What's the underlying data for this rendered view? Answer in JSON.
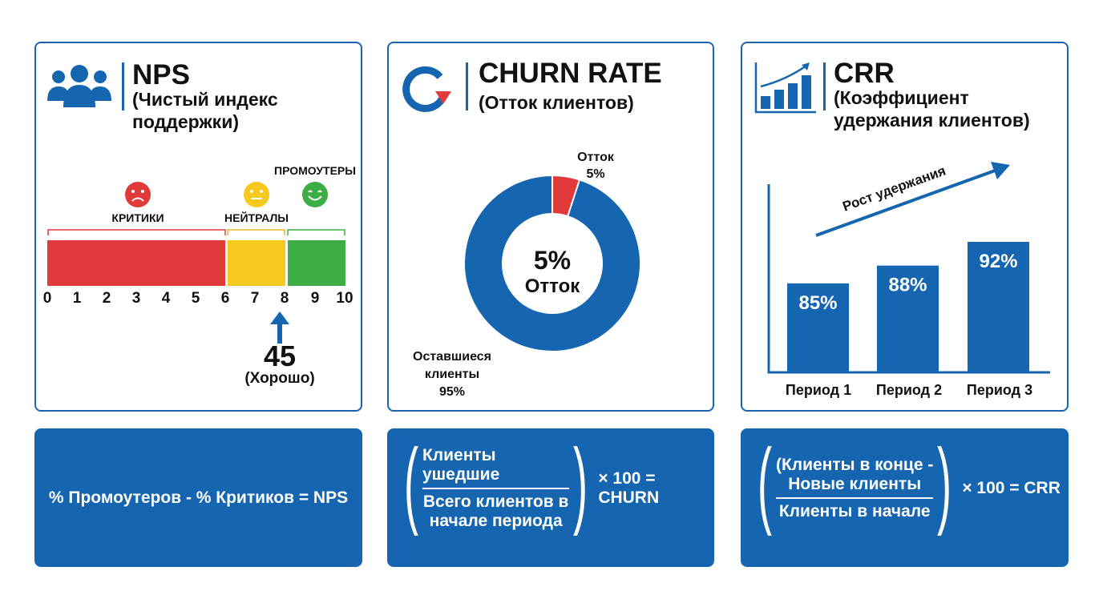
{
  "colors": {
    "blue": "#1565b0",
    "red": "#e03a3a",
    "yellow": "#f6c91f",
    "green": "#3cae45"
  },
  "nps": {
    "icon": "users-icon",
    "title": "NPS",
    "subtitle_line1": "(Чистый индекс",
    "subtitle_line2": "поддержки)",
    "segments": [
      {
        "label": "КРИТИКИ",
        "from": 0,
        "to": 6,
        "icon": "sad-face-icon"
      },
      {
        "label": "НЕЙТРАЛЫ",
        "from": 6,
        "to": 8,
        "icon": "neutral-face-icon"
      },
      {
        "label": "ПРОМОУТЕРЫ",
        "from": 8,
        "to": 10,
        "icon": "happy-face-icon"
      }
    ],
    "ticks": [
      "0",
      "1",
      "2",
      "3",
      "4",
      "5",
      "6",
      "7",
      "8",
      "9",
      "10"
    ],
    "score": "45",
    "score_label": "(Хорошо)",
    "formula": "% Промоутеров - % Критиков = NPS"
  },
  "churn": {
    "icon": "churn-cycle-icon",
    "title": "CHURN RATE",
    "subtitle": "(Отток клиентов)",
    "churn_percent": 5,
    "center_value": "5%",
    "center_label": "Отток",
    "slice_label": "Отток",
    "slice_value": "5%",
    "remain_label_line1": "Оставшиеся",
    "remain_label_line2": "клиенты",
    "remain_value": "95%",
    "formula_numerator": "Клиенты ушедшие",
    "formula_denominator_line1": "Всего клиентов в",
    "formula_denominator_line2": "начале периода",
    "formula_tail": "× 100 = CHURN"
  },
  "crr": {
    "icon": "growth-chart-icon",
    "title": "CRR",
    "subtitle_line1": "(Коэффициент",
    "subtitle_line2": "удержания клиентов)",
    "trend_label": "Рост удержания",
    "bars": [
      {
        "label": "Период 1",
        "value": 85,
        "text": "85%"
      },
      {
        "label": "Период 2",
        "value": 88,
        "text": "88%"
      },
      {
        "label": "Период 3",
        "value": 92,
        "text": "92%"
      }
    ],
    "formula_numerator_line1": "(Клиенты в конце -",
    "formula_numerator_line2": "Новые клиенты",
    "formula_denominator": "Клиенты в начале",
    "formula_tail": "× 100 = CRR"
  }
}
